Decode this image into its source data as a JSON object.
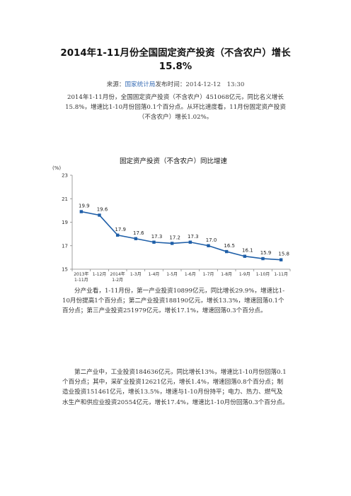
{
  "article": {
    "title": "2014年1-11月份全国固定资产投资（不含农户）增长15.8%",
    "source_label": "来源：",
    "source_name": "国家统计局",
    "publish_label": "发布时间：",
    "publish_time": "2014-12-12　13:30",
    "paragraph1": "2014年1-11月份，全国固定资产投资（不含农户）451068亿元，同比名义增长15.8%，增速比1-10月份回落0.1个百分点。从环比速度看，11月份固定资产投资（不含农户）增长1.02%。",
    "paragraph2": "分产业看，1-11月份，第一产业投资10899亿元，同比增长29.9%，增速比1-10月份提高1个百分点；第二产业投资188190亿元，增长13.3%，增速回落0.1个百分点；第三产业投资251979亿元，增长17.1%，增速回落0.3个百分点。",
    "paragraph3": "第二产业中，工业投资184636亿元，同比增长13%，增速比1-10月份回落0.1个百分点；其中，采矿业投资12621亿元，增长1.4%，增速回落0.8个百分点；制造业投资151461亿元，增长13.5%，增速与1-10月份持平；电力、热力、燃气及水生产和供应业投资20554亿元，增长17.4%，增速比1-10月份回落0.3个百分点。"
  },
  "chart_data": {
    "type": "line",
    "title": "固定资产投资（不含农户）同比增速",
    "ylabel": "(%)",
    "ylim": [
      15,
      23
    ],
    "yticks": [
      15,
      17,
      19,
      21,
      23
    ],
    "categories": [
      [
        "2013年",
        "1-11月"
      ],
      [
        "1-12月"
      ],
      [
        "2014年",
        "1-2月"
      ],
      [
        "1-3月"
      ],
      [
        "1-4月"
      ],
      [
        "1-5月"
      ],
      [
        "1-6月"
      ],
      [
        "1-7月"
      ],
      [
        "1-8月"
      ],
      [
        "1-9月"
      ],
      [
        "1-10月"
      ],
      [
        "1-11月"
      ]
    ],
    "values": [
      19.9,
      19.6,
      17.9,
      17.6,
      17.3,
      17.2,
      17.3,
      17.0,
      16.5,
      16.1,
      15.9,
      15.8
    ],
    "data_labels": [
      "19.9",
      "19.6",
      "17.9",
      "17.6",
      "17.3",
      "17.2",
      "17.3",
      "17.0",
      "16.5",
      "16.1",
      "15.9",
      "15.8"
    ],
    "series_color": "#1f5fa8",
    "grid": false,
    "legend": "none"
  }
}
